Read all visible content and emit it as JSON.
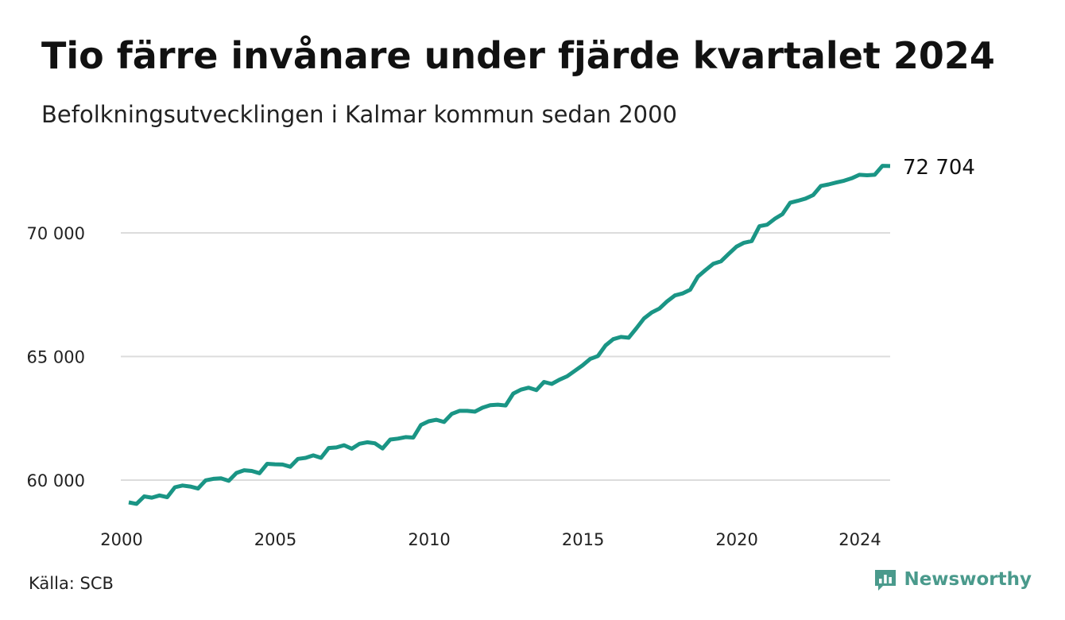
{
  "header": {
    "title": "Tio färre invånare under fjärde kvartalet 2024",
    "subtitle": "Befolkningsutvecklingen i Kalmar kommun sedan 2000"
  },
  "footer": {
    "source": "Källa: SCB",
    "brand": "Newsworthy",
    "brand_color": "#4a9a8c"
  },
  "chart_data": {
    "type": "line",
    "title": "Tio färre invånare under fjärde kvartalet 2024",
    "subtitle": "Befolkningsutvecklingen i Kalmar kommun sedan 2000",
    "xlabel": "",
    "ylabel": "",
    "x_ticks": [
      "2000",
      "2005",
      "2010",
      "2015",
      "2020",
      "2024"
    ],
    "x_tick_values": [
      2000,
      2005,
      2010,
      2015,
      2020,
      2024
    ],
    "y_ticks": [
      "60 000",
      "65 000",
      "70 000"
    ],
    "y_tick_values": [
      60000,
      65000,
      70000
    ],
    "xlim": [
      2000,
      2024.75
    ],
    "ylim": [
      58600,
      73200
    ],
    "grid": "horizontal",
    "line_color": "#1a9585",
    "end_label": "72 704",
    "series": [
      {
        "x": [
          2000.0,
          2000.25,
          2000.5,
          2000.75,
          2001.0,
          2001.25,
          2001.5,
          2001.75,
          2002.0,
          2002.25,
          2002.5,
          2002.75,
          2003.0,
          2003.25,
          2003.5,
          2003.75,
          2004.0,
          2004.25,
          2004.5,
          2004.75,
          2005.0,
          2005.25,
          2005.5,
          2005.75,
          2006.0,
          2006.25,
          2006.5,
          2006.75,
          2007.0,
          2007.25,
          2007.5,
          2007.75,
          2008.0,
          2008.25,
          2008.5,
          2008.75,
          2009.0,
          2009.25,
          2009.5,
          2009.75,
          2010.0,
          2010.25,
          2010.5,
          2010.75,
          2011.0,
          2011.25,
          2011.5,
          2011.75,
          2012.0,
          2012.25,
          2012.5,
          2012.75,
          2013.0,
          2013.25,
          2013.5,
          2013.75,
          2014.0,
          2014.25,
          2014.5,
          2014.75,
          2015.0,
          2015.25,
          2015.5,
          2015.75,
          2016.0,
          2016.25,
          2016.5,
          2016.75,
          2017.0,
          2017.25,
          2017.5,
          2017.75,
          2018.0,
          2018.25,
          2018.5,
          2018.75,
          2019.0,
          2019.25,
          2019.5,
          2019.75,
          2020.0,
          2020.25,
          2020.5,
          2020.75,
          2021.0,
          2021.25,
          2021.5,
          2021.75,
          2022.0,
          2022.25,
          2022.5,
          2022.75,
          2023.0,
          2023.25,
          2023.5,
          2023.75,
          2024.0,
          2024.25,
          2024.5,
          2024.75
        ],
        "values": [
          59100,
          59040,
          59340,
          59290,
          59380,
          59310,
          59710,
          59780,
          59740,
          59660,
          59990,
          60050,
          60070,
          59970,
          60290,
          60400,
          60370,
          60280,
          60660,
          60640,
          60630,
          60540,
          60860,
          60900,
          61000,
          60900,
          61300,
          61320,
          61410,
          61270,
          61470,
          61530,
          61490,
          61280,
          61640,
          61680,
          61740,
          61720,
          62230,
          62380,
          62440,
          62350,
          62680,
          62800,
          62800,
          62770,
          62930,
          63030,
          63050,
          63020,
          63500,
          63660,
          63740,
          63640,
          63970,
          63890,
          64060,
          64200,
          64420,
          64640,
          64900,
          65020,
          65450,
          65700,
          65790,
          65760,
          66140,
          66540,
          66780,
          66940,
          67230,
          67470,
          67550,
          67700,
          68230,
          68500,
          68750,
          68850,
          69150,
          69440,
          69600,
          69670,
          70270,
          70330,
          70570,
          70760,
          71220,
          71300,
          71390,
          71530,
          71900,
          71960,
          72040,
          72110,
          72210,
          72350,
          72330,
          72350,
          72714,
          72704
        ]
      }
    ]
  }
}
